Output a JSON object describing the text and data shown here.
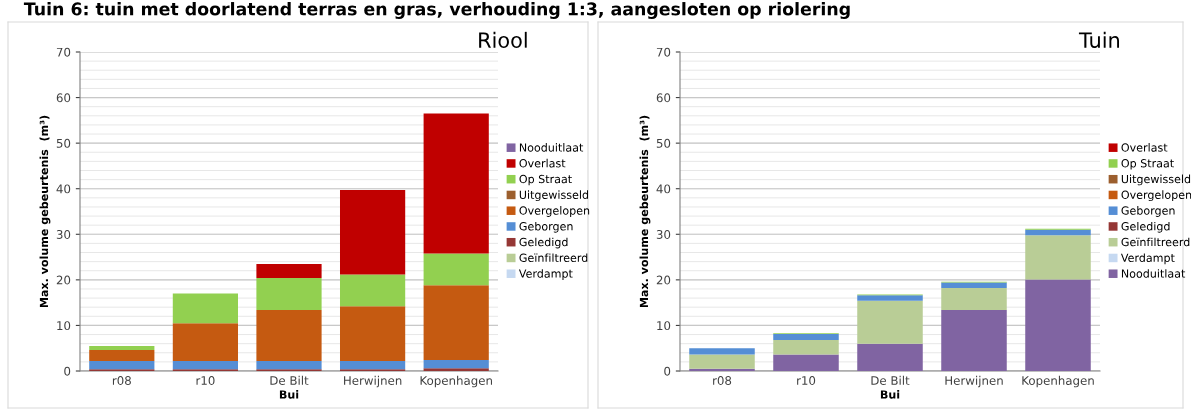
{
  "chart_data": [
    {
      "type": "bar",
      "stacked": true,
      "title": "Riool",
      "annotations": [
        "Tuin 6: tuin met doorlatend terras en gras, verhouding 1:3, aangesloten op riolering"
      ],
      "xlabel": "Bui",
      "ylabel": "Max. volume gebeurtenis  (m³)",
      "categories": [
        "r08",
        "r10",
        "De Bilt",
        "Herwijnen",
        "Kopenhagen"
      ],
      "ylim": [
        0,
        70
      ],
      "yticks": [
        0,
        10,
        20,
        30,
        40,
        50,
        60,
        70
      ],
      "grid": "y",
      "legend": "right",
      "series": [
        {
          "name": "Verdampt",
          "color": "#c6d9f1",
          "values": [
            0,
            0,
            0,
            0,
            0
          ]
        },
        {
          "name": "Geïnfiltreerd",
          "color": "#b9cd96",
          "values": [
            0,
            0,
            0,
            0,
            0
          ]
        },
        {
          "name": "Geledigd",
          "color": "#953735",
          "values": [
            0.4,
            0.4,
            0.4,
            0.4,
            0.6
          ]
        },
        {
          "name": "Geborgen",
          "color": "#558ed5",
          "values": [
            1.8,
            1.8,
            1.8,
            1.8,
            1.8
          ]
        },
        {
          "name": "Overgelopen",
          "color": "#c55a11",
          "values": [
            2.4,
            8.3,
            11.2,
            12.0,
            16.4
          ]
        },
        {
          "name": "Uitgewisseld",
          "color": "#9c5f2e",
          "values": [
            0,
            0,
            0,
            0,
            0
          ]
        },
        {
          "name": "Op Straat",
          "color": "#92d050",
          "values": [
            0.9,
            6.5,
            7.0,
            7.0,
            7.0
          ]
        },
        {
          "name": "Overlast",
          "color": "#c00000",
          "values": [
            0,
            0,
            3.1,
            18.5,
            30.7
          ]
        },
        {
          "name": "Nooduitlaat",
          "color": "#8064a2",
          "values": [
            0,
            0,
            0,
            0,
            0
          ]
        }
      ]
    },
    {
      "type": "bar",
      "stacked": true,
      "title": "Tuin",
      "xlabel": "Bui",
      "ylabel": "Max. volume gebeurtenis  (m³)",
      "categories": [
        "r08",
        "r10",
        "De Bilt",
        "Herwijnen",
        "Kopenhagen"
      ],
      "ylim": [
        0,
        70
      ],
      "yticks": [
        0,
        10,
        20,
        30,
        40,
        50,
        60,
        70
      ],
      "grid": "y",
      "legend": "right",
      "series": [
        {
          "name": "Nooduitlaat",
          "color": "#8064a2",
          "values": [
            0.5,
            3.6,
            6.0,
            13.4,
            20.1
          ]
        },
        {
          "name": "Verdampt",
          "color": "#c6d9f1",
          "values": [
            0,
            0,
            0,
            0,
            0
          ]
        },
        {
          "name": "Geïnfiltreerd",
          "color": "#b9cd96",
          "values": [
            3.1,
            3.2,
            9.4,
            4.8,
            9.7
          ]
        },
        {
          "name": "Geledigd",
          "color": "#953735",
          "values": [
            0,
            0,
            0,
            0,
            0
          ]
        },
        {
          "name": "Geborgen",
          "color": "#558ed5",
          "values": [
            1.4,
            1.3,
            1.2,
            1.2,
            1.2
          ]
        },
        {
          "name": "Overgelopen",
          "color": "#c55a11",
          "values": [
            0,
            0,
            0,
            0,
            0
          ]
        },
        {
          "name": "Uitgewisseld",
          "color": "#9c5f2e",
          "values": [
            0,
            0,
            0,
            0,
            0
          ]
        },
        {
          "name": "Op Straat",
          "color": "#92d050",
          "values": [
            0,
            0.2,
            0.2,
            0.2,
            0.2
          ]
        },
        {
          "name": "Overlast",
          "color": "#c00000",
          "values": [
            0,
            0,
            0,
            0,
            0
          ]
        }
      ]
    }
  ]
}
